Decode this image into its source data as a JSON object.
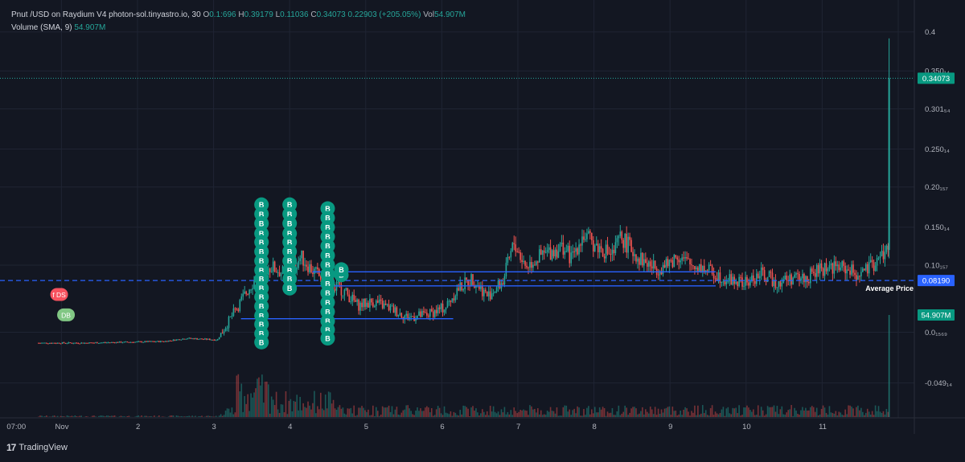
{
  "header": {
    "symbol": "Pnut /USD on Raydium V4 photon-sol.tinyastro.io, 30",
    "o_label": "O",
    "o_value": "0.1:696",
    "h_label": "H",
    "h_value": "0.39179",
    "l_label": "L",
    "l_value": "0.11036",
    "c_label": "C",
    "c_value": "0.34073",
    "change": "0.22903 (+205.05%)",
    "vol_label": "Vol",
    "vol_value": "54.907M",
    "volume_indicator": "Volume (SMA, 9)",
    "volume_indicator_value": "54.907M"
  },
  "brand": {
    "name": "TradingView",
    "logo": "17"
  },
  "colors": {
    "background": "#131722",
    "grid": "#1f2433",
    "up": "#26a69a",
    "down": "#ef5350",
    "line": "#2962ff",
    "average_line": "#2962ff",
    "price_label_bg": "#089981",
    "avg_label_bg": "#2962ff",
    "buy_marker": "#089981",
    "sell_marker": "#f7525f",
    "buy_marker_light": "#81c784"
  },
  "chart_data": {
    "type": "candlestick",
    "title": "",
    "x_ticks": [
      "07:00",
      "Nov",
      "2",
      "3",
      "4",
      "5",
      "6",
      "7",
      "8",
      "9",
      "10",
      "11"
    ],
    "y_ticks": [
      "0.4",
      "0.350₁₄",
      "0.301₅₄",
      "0.250₁₄",
      "0.20₁₅₇",
      "0.150₁₄",
      "0.10₁₅₇",
      "0.0₁₅₆₉",
      "-0.049₁₄"
    ],
    "y_tick_values": [
      0.4,
      0.35014,
      0.30154,
      0.25014,
      0.20157,
      0.15014,
      0.10157,
      0.01569,
      -0.04914
    ],
    "ylim": [
      -0.065,
      0.41
    ],
    "day_range": [
      -0.3,
      10.3
    ],
    "current_price": {
      "value": 0.34073,
      "label": "0.34073"
    },
    "average_price": {
      "value": 0.0819,
      "label": "0.08190",
      "text": "Average Price"
    },
    "volume_label": "54.907M",
    "horizontal_lines": [
      {
        "x0": 2.36,
        "x1": 5.15,
        "y": 0.033
      },
      {
        "x0": 3.0,
        "x1": 8.6,
        "y": 0.075
      },
      {
        "x0": 3.3,
        "x1": 8.6,
        "y": 0.093
      }
    ],
    "markers": {
      "buy_label": "B",
      "columns": [
        {
          "x": 2.63,
          "ys": [
            0.179,
            0.167,
            0.155,
            0.142,
            0.131,
            0.119,
            0.107,
            0.095,
            0.084,
            0.072,
            0.061,
            0.049,
            0.037,
            0.026,
            0.014,
            0.003
          ]
        },
        {
          "x": 3.0,
          "ys": [
            0.179,
            0.167,
            0.155,
            0.142,
            0.131,
            0.119,
            0.107,
            0.095,
            0.084,
            0.072
          ]
        },
        {
          "x": 3.5,
          "ys": [
            0.174,
            0.162,
            0.15,
            0.138,
            0.126,
            0.114,
            0.102,
            0.09,
            0.078,
            0.066,
            0.054,
            0.042,
            0.03,
            0.019,
            0.008
          ]
        }
      ],
      "extra_buy": [
        {
          "x": 3.68,
          "y": 0.089
        },
        {
          "x": 3.68,
          "y": 0.096
        }
      ],
      "sell": {
        "x": -0.03,
        "y": 0.064,
        "label": "f DS"
      },
      "buy_light": {
        "x": 0.06,
        "y": 0.038,
        "label": "DB"
      }
    },
    "series": {
      "day_points": [
        -0.3,
        0.3,
        1.35,
        1.65,
        2.05,
        2.4,
        2.55,
        2.75,
        2.95,
        3.15,
        3.3,
        3.45,
        3.7,
        3.9,
        4.1,
        4.35,
        4.55,
        4.8,
        5.05,
        5.2,
        5.4,
        5.6,
        5.8,
        5.95,
        6.1,
        6.25,
        6.45,
        6.6,
        6.7,
        6.85,
        7.05,
        7.25,
        7.35,
        7.6,
        7.8,
        7.95,
        8.1,
        8.25,
        8.4,
        8.6,
        8.8,
        9.0,
        9.2,
        9.4,
        9.6,
        9.8,
        9.95,
        10.1,
        10.3,
        10.45,
        10.6,
        10.75,
        10.85
      ],
      "price_points": [
        0.002,
        0.002,
        0.004,
        0.008,
        0.006,
        0.062,
        0.085,
        0.1,
        0.09,
        0.112,
        0.095,
        0.082,
        0.07,
        0.05,
        0.055,
        0.045,
        0.035,
        0.038,
        0.048,
        0.07,
        0.085,
        0.062,
        0.08,
        0.13,
        0.1,
        0.11,
        0.12,
        0.125,
        0.11,
        0.14,
        0.125,
        0.115,
        0.138,
        0.11,
        0.098,
        0.1,
        0.115,
        0.102,
        0.1,
        0.09,
        0.082,
        0.078,
        0.09,
        0.08,
        0.085,
        0.085,
        0.095,
        0.1,
        0.098,
        0.09,
        0.095,
        0.11,
        0.121
      ]
    },
    "spike": {
      "x": 10.88,
      "open": 0.121,
      "high": 0.39179,
      "low": 0.11036,
      "close": 0.34073
    }
  }
}
